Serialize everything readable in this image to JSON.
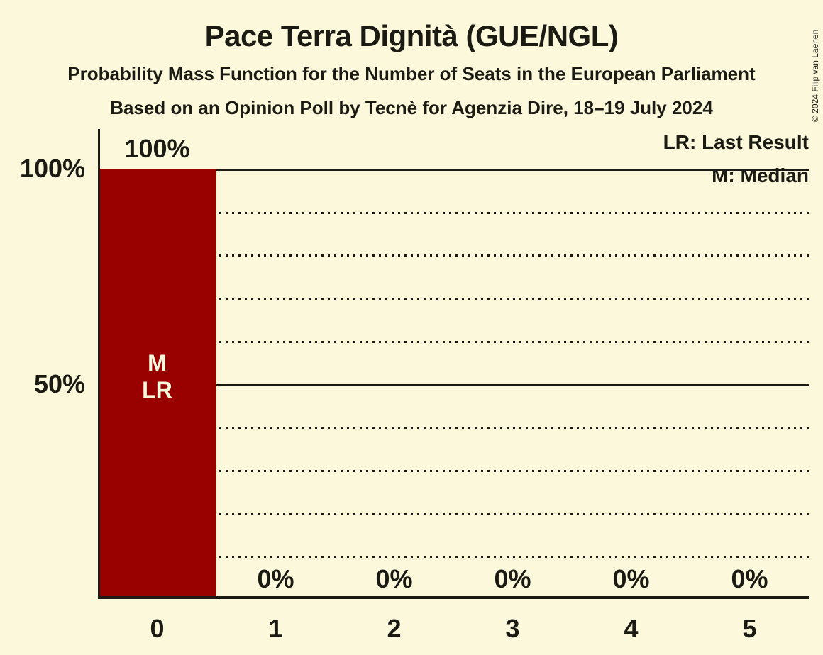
{
  "chart_data": {
    "type": "bar",
    "title": "Pace Terra Dignità (GUE/NGL)",
    "subtitle": "Probability Mass Function for the Number of Seats in the European Parliament",
    "source_line": "Based on an Opinion Poll by Tecnè for Agenzia Dire, 18–19 July 2024",
    "copyright": "© 2024 Filip van Laenen",
    "legend": [
      "LR: Last Result",
      "M: Median"
    ],
    "categories": [
      "0",
      "1",
      "2",
      "3",
      "4",
      "5"
    ],
    "values": [
      100,
      0,
      0,
      0,
      0,
      0
    ],
    "value_labels": [
      "100%",
      "0%",
      "0%",
      "0%",
      "0%",
      "0%"
    ],
    "ylim": [
      0,
      100
    ],
    "yticks": [
      {
        "label": "100%",
        "value": 100
      },
      {
        "label": "50%",
        "value": 50
      }
    ],
    "gridlines": {
      "solid": [
        100,
        50
      ],
      "dotted": [
        90,
        80,
        70,
        60,
        40,
        30,
        20,
        10
      ]
    },
    "annotations": [
      {
        "category": "0",
        "lines": [
          "M",
          "LR"
        ]
      }
    ],
    "legend_position": "top-right",
    "grid": "horizontal-dotted-with-solid-at-50-and-100",
    "colors": {
      "background": "#FCF8DC",
      "bar": "#990000",
      "ink": "#1B1B14",
      "bar_text": "#FCF8DC"
    }
  }
}
